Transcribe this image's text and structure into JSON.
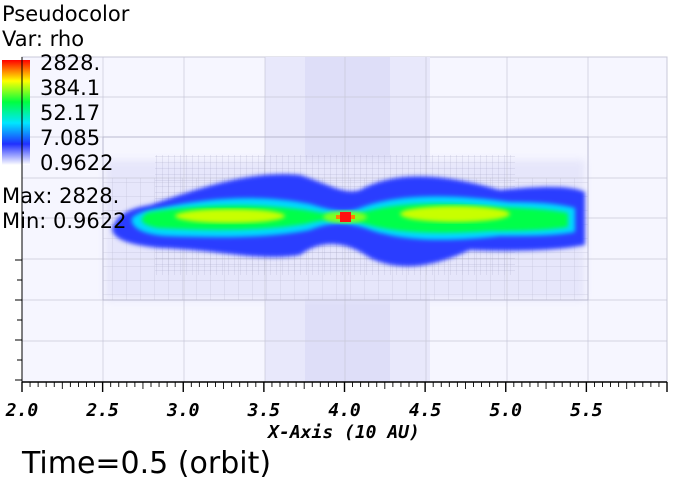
{
  "legend": {
    "plot_name": "Pseudocolor",
    "var_label": "Var: rho",
    "ticks": [
      "2828.",
      "384.1",
      "52.17",
      "7.085",
      "0.9622"
    ],
    "max_label": "Max:  2828.",
    "min_label": "Min:  0.9622",
    "colormap": [
      "#ffffff",
      "#2030ff",
      "#00e6ff",
      "#00ff40",
      "#ffff00",
      "#ff0000"
    ]
  },
  "time_label": "Time=0.5 (orbit)",
  "chart_data": {
    "type": "heatmap",
    "xlabel": "X-Axis (10 AU)",
    "ylabel": "",
    "xlim": [
      2.0,
      6.0
    ],
    "x_ticks": [
      "2.0",
      "2.5",
      "3.0",
      "3.5",
      "4.0",
      "4.5",
      "5.0",
      "5.5"
    ],
    "x_tick_values": [
      2.0,
      2.5,
      3.0,
      3.5,
      4.0,
      4.5,
      5.0,
      5.5
    ],
    "colorbar_scale": "log",
    "value_range": [
      0.9622,
      2828
    ],
    "peak": {
      "x": 4.0,
      "value": 2828
    }
  }
}
